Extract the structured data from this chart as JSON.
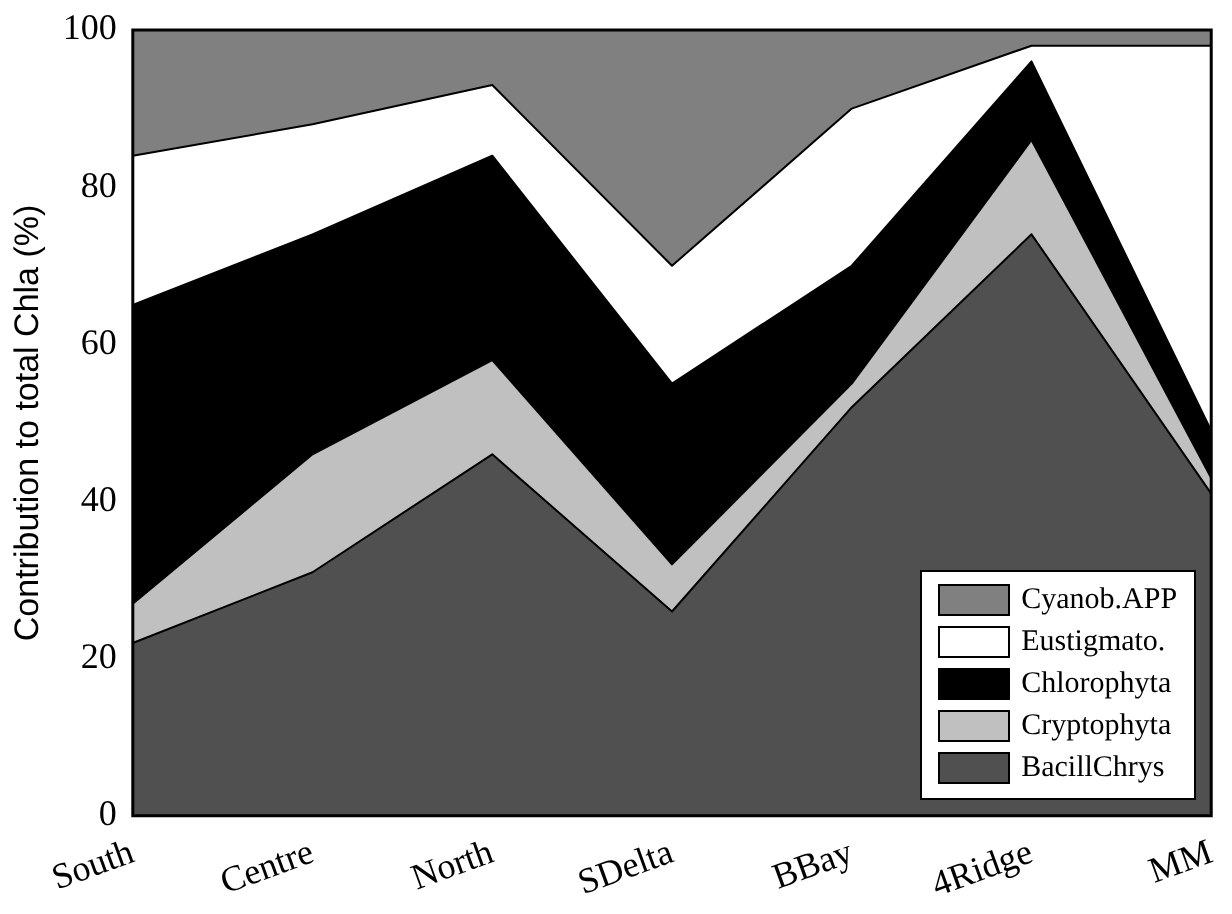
{
  "chart_data": {
    "type": "area",
    "stacked": true,
    "ylabel": "Contribution to total Chla (%)",
    "categories": [
      "South",
      "Centre",
      "North",
      "SDelta",
      "BBay",
      "4Ridge",
      "MM"
    ],
    "ylim": [
      0,
      100
    ],
    "yticks": [
      0,
      20,
      40,
      60,
      80,
      100
    ],
    "grid": false,
    "legend": "bottom right",
    "series": [
      {
        "name": "BacillChrys",
        "color": "#505050",
        "values": [
          22,
          31,
          46,
          26,
          52,
          74,
          41
        ]
      },
      {
        "name": "Cryptophyta",
        "color": "#c0c0c0",
        "values": [
          5,
          15,
          12,
          6,
          3,
          12,
          2
        ]
      },
      {
        "name": "Chlorophyta",
        "color": "#000000",
        "values": [
          38,
          28,
          26,
          23,
          15,
          10,
          6
        ]
      },
      {
        "name": "Eustigmato.",
        "color": "#ffffff",
        "values": [
          19,
          14,
          9,
          15,
          20,
          2,
          49
        ]
      },
      {
        "name": "Cyanob.APP",
        "color": "#808080",
        "values": [
          16,
          12,
          7,
          30,
          10,
          2,
          2
        ]
      }
    ]
  }
}
